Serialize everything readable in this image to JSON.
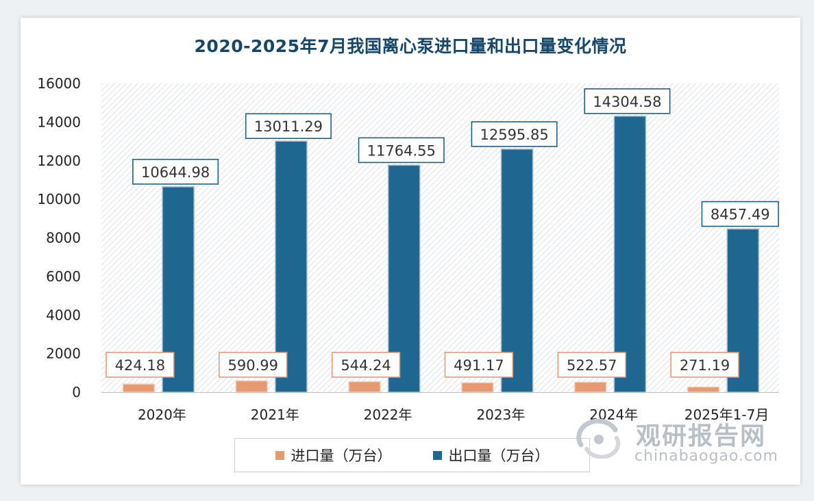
{
  "chart_data": {
    "type": "bar",
    "title": "2020-2025年7月我国离心泵进口量和出口量变化情况",
    "categories": [
      "2020年",
      "2021年",
      "2022年",
      "2023年",
      "2024年",
      "2025年1-7月"
    ],
    "series": [
      {
        "name": "进口量（万台）",
        "color": "#e59a72",
        "values": [
          424.18,
          590.99,
          544.24,
          491.17,
          522.57,
          271.19
        ]
      },
      {
        "name": "出口量（万台）",
        "color": "#1f6690",
        "values": [
          10644.98,
          13011.29,
          11764.55,
          12595.85,
          14304.58,
          8457.49
        ]
      }
    ],
    "data_labels": {
      "import": [
        "424.18",
        "590.99",
        "544.24",
        "491.17",
        "522.57",
        "271.19"
      ],
      "export": [
        "10644.98",
        "13011.29",
        "11764.55",
        "12595.85",
        "14304.58",
        "8457.49"
      ]
    },
    "yticks": [
      "0",
      "2000",
      "4000",
      "6000",
      "8000",
      "10000",
      "12000",
      "14000",
      "16000"
    ],
    "ylim": [
      0,
      16000
    ],
    "xlabel": "",
    "ylabel": "",
    "legend_position": "bottom"
  },
  "legend": {
    "import_label": "进口量（万台）",
    "export_label": "出口量（万台）"
  },
  "watermark": {
    "name_cn": "观研报告网",
    "domain": "chinabaogao.com"
  }
}
